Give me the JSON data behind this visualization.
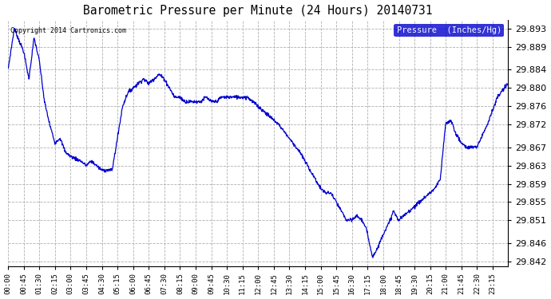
{
  "title": "Barometric Pressure per Minute (24 Hours) 20140731",
  "copyright_text": "Copyright 2014 Cartronics.com",
  "legend_label": "Pressure  (Inches/Hg)",
  "line_color": "#0000cc",
  "background_color": "#ffffff",
  "plot_bg_color": "#ffffff",
  "grid_color": "#b0b0b0",
  "ylim": [
    29.841,
    29.895
  ],
  "yticks": [
    29.842,
    29.846,
    29.851,
    29.855,
    29.859,
    29.863,
    29.867,
    29.872,
    29.876,
    29.88,
    29.884,
    29.889,
    29.893
  ],
  "xtick_labels": [
    "00:00",
    "00:45",
    "01:30",
    "02:15",
    "03:00",
    "03:45",
    "04:30",
    "05:15",
    "06:00",
    "06:45",
    "07:30",
    "08:15",
    "09:00",
    "09:45",
    "10:30",
    "11:15",
    "12:00",
    "12:45",
    "13:30",
    "14:15",
    "15:00",
    "15:45",
    "16:30",
    "17:15",
    "18:00",
    "18:45",
    "19:30",
    "20:15",
    "21:00",
    "21:45",
    "22:30",
    "23:15"
  ],
  "waypoints_t": [
    0.0,
    0.3,
    0.75,
    1.0,
    1.25,
    1.5,
    1.75,
    2.0,
    2.25,
    2.5,
    2.75,
    3.0,
    3.5,
    3.75,
    4.0,
    4.5,
    5.0,
    5.5,
    5.75,
    6.0,
    6.25,
    6.5,
    6.75,
    7.0,
    7.25,
    7.5,
    7.75,
    8.0,
    8.25,
    8.5,
    8.75,
    9.0,
    9.25,
    9.5,
    9.75,
    10.0,
    10.25,
    10.5,
    10.75,
    11.0,
    11.25,
    11.5,
    12.0,
    12.5,
    13.0,
    13.5,
    14.0,
    14.5,
    15.0,
    15.25,
    15.5,
    15.75,
    16.0,
    16.25,
    16.5,
    16.75,
    17.0,
    17.2,
    17.5,
    17.75,
    18.0,
    18.25,
    18.5,
    18.75,
    19.0,
    19.25,
    19.5,
    19.75,
    20.0,
    20.25,
    20.5,
    20.75,
    21.0,
    21.25,
    21.5,
    21.75,
    22.0,
    22.5,
    23.0,
    23.5,
    24.0
  ],
  "waypoints_v": [
    29.884,
    29.893,
    29.888,
    29.882,
    29.891,
    29.886,
    29.877,
    29.872,
    29.868,
    29.869,
    29.866,
    29.865,
    29.864,
    29.863,
    29.864,
    29.862,
    29.862,
    29.876,
    29.879,
    29.88,
    29.881,
    29.882,
    29.881,
    29.882,
    29.883,
    29.882,
    29.88,
    29.878,
    29.878,
    29.877,
    29.877,
    29.877,
    29.877,
    29.878,
    29.877,
    29.877,
    29.878,
    29.878,
    29.878,
    29.878,
    29.878,
    29.878,
    29.876,
    29.874,
    29.872,
    29.869,
    29.866,
    29.862,
    29.858,
    29.857,
    29.857,
    29.855,
    29.853,
    29.851,
    29.851,
    29.852,
    29.851,
    29.849,
    29.843,
    29.845,
    29.848,
    29.85,
    29.853,
    29.851,
    29.852,
    29.853,
    29.854,
    29.855,
    29.856,
    29.857,
    29.858,
    29.86,
    29.872,
    29.873,
    29.87,
    29.868,
    29.867,
    29.867,
    29.872,
    29.878,
    29.881
  ]
}
